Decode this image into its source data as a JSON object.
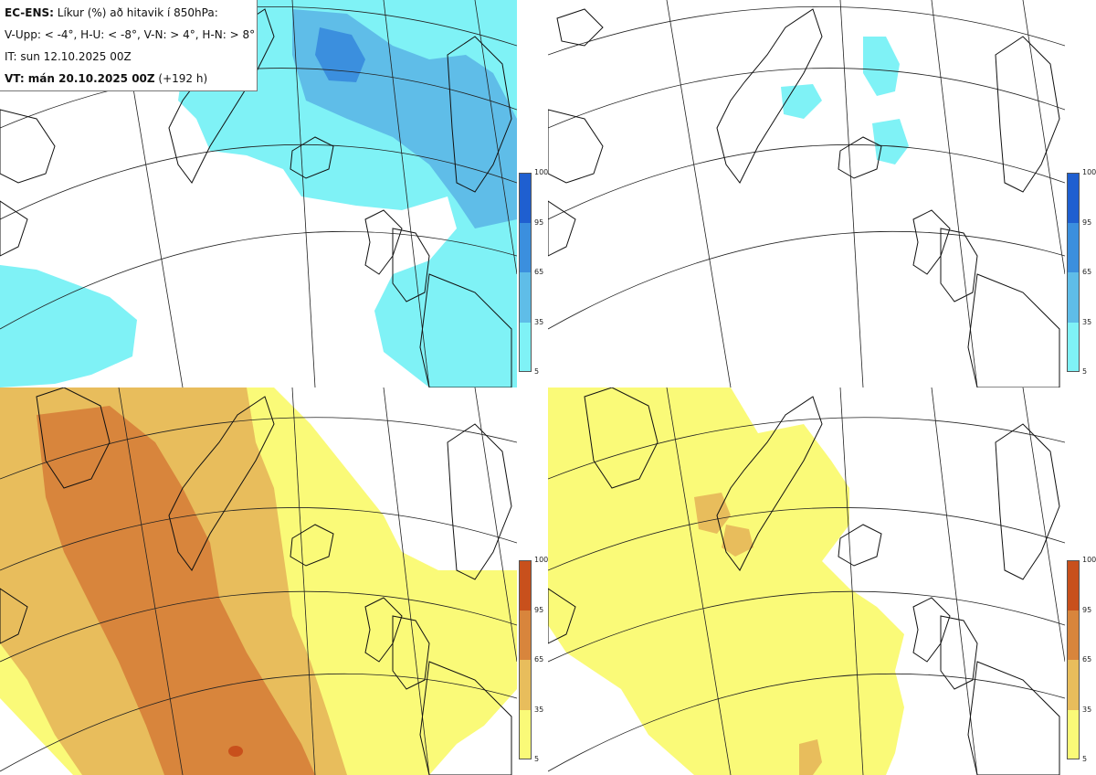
{
  "info": {
    "title_bold": "EC-ENS:",
    "title_rest": " Líkur (%) að hitavik í 850hPa:",
    "thresholds": "V-Upp: < -4°, H-U: < -8°, V-N: > 4°, H-N: > 8°",
    "init_time": "IT: sun 12.10.2025 00Z",
    "valid_bold": "VT: mán 20.10.2025 00Z",
    "valid_rest": " (+192 h)"
  },
  "colorbars": {
    "cold": {
      "labels": [
        "100",
        "95",
        "65",
        "35",
        "5"
      ],
      "colors": [
        "#1f5fd0",
        "#3b8fde",
        "#5fbde8",
        "#7ff2f6"
      ]
    },
    "warm": {
      "labels": [
        "100",
        "95",
        "65",
        "35",
        "5"
      ],
      "colors": [
        "#c8501c",
        "#d8853c",
        "#e8bd5c",
        "#fafa78"
      ]
    }
  },
  "panels": [
    {
      "id": "V-Upp",
      "scheme": "cold",
      "level": "high coverage"
    },
    {
      "id": "H-U",
      "scheme": "cold",
      "level": "sparse"
    },
    {
      "id": "V-N",
      "scheme": "warm",
      "level": "high coverage"
    },
    {
      "id": "H-N",
      "scheme": "warm",
      "level": "moderate coverage"
    }
  ],
  "icons": {
    "graticule": "graticule-lines",
    "coastline": "coastline-outline"
  }
}
